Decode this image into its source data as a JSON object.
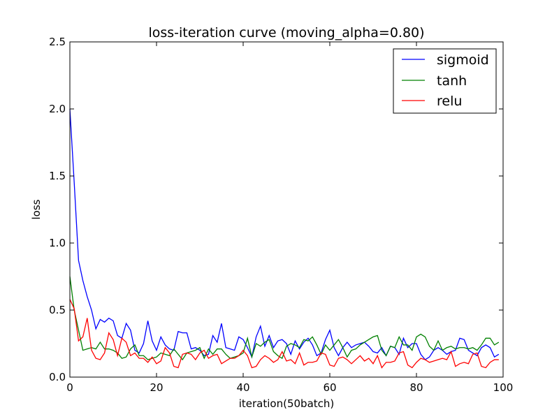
{
  "chart_data": {
    "type": "line",
    "title": "loss-iteration curve (moving_alpha=0.80)",
    "xlabel": "iteration(50batch)",
    "ylabel": "loss",
    "xlim": [
      0,
      100
    ],
    "ylim": [
      0,
      2.5
    ],
    "x_ticks": [
      0,
      20,
      40,
      60,
      80,
      100
    ],
    "x_tick_labels": [
      "0",
      "20",
      "40",
      "60",
      "80",
      "100"
    ],
    "y_ticks": [
      0,
      0.5,
      1.0,
      1.5,
      2.0,
      2.5
    ],
    "y_tick_labels": [
      "0.0",
      "0.5",
      "1.0",
      "1.5",
      "2.0",
      "2.5"
    ],
    "grid": false,
    "legend_position": "top-right",
    "series": [
      {
        "name": "sigmoid",
        "color": "#0000ff",
        "values": [
          2.0,
          1.45,
          0.87,
          0.72,
          0.6,
          0.5,
          0.36,
          0.43,
          0.41,
          0.44,
          0.42,
          0.31,
          0.29,
          0.4,
          0.35,
          0.2,
          0.18,
          0.25,
          0.42,
          0.27,
          0.2,
          0.3,
          0.24,
          0.21,
          0.2,
          0.34,
          0.33,
          0.33,
          0.21,
          0.22,
          0.2,
          0.16,
          0.17,
          0.31,
          0.26,
          0.4,
          0.22,
          0.21,
          0.2,
          0.3,
          0.28,
          0.22,
          0.15,
          0.3,
          0.38,
          0.23,
          0.31,
          0.22,
          0.27,
          0.28,
          0.25,
          0.17,
          0.27,
          0.21,
          0.26,
          0.29,
          0.24,
          0.16,
          0.18,
          0.28,
          0.35,
          0.22,
          0.16,
          0.22,
          0.26,
          0.22,
          0.24,
          0.25,
          0.26,
          0.23,
          0.19,
          0.18,
          0.22,
          0.16,
          0.23,
          0.22,
          0.17,
          0.29,
          0.22,
          0.25,
          0.25,
          0.17,
          0.13,
          0.15,
          0.2,
          0.22,
          0.2,
          0.17,
          0.19,
          0.2,
          0.29,
          0.28,
          0.2,
          0.18,
          0.16,
          0.22,
          0.24,
          0.22,
          0.15,
          0.17
        ]
      },
      {
        "name": "tanh",
        "color": "#008000",
        "values": [
          0.75,
          0.5,
          0.35,
          0.2,
          0.21,
          0.22,
          0.21,
          0.26,
          0.21,
          0.21,
          0.2,
          0.18,
          0.14,
          0.15,
          0.21,
          0.24,
          0.16,
          0.16,
          0.13,
          0.14,
          0.15,
          0.18,
          0.17,
          0.16,
          0.21,
          0.17,
          0.13,
          0.18,
          0.19,
          0.2,
          0.22,
          0.14,
          0.21,
          0.17,
          0.21,
          0.21,
          0.17,
          0.14,
          0.15,
          0.16,
          0.18,
          0.29,
          0.15,
          0.25,
          0.23,
          0.26,
          0.28,
          0.19,
          0.16,
          0.14,
          0.23,
          0.25,
          0.24,
          0.22,
          0.28,
          0.27,
          0.3,
          0.24,
          0.17,
          0.24,
          0.2,
          0.24,
          0.28,
          0.22,
          0.15,
          0.2,
          0.21,
          0.24,
          0.26,
          0.28,
          0.3,
          0.31,
          0.2,
          0.16,
          0.23,
          0.22,
          0.3,
          0.24,
          0.24,
          0.2,
          0.3,
          0.32,
          0.3,
          0.23,
          0.2,
          0.27,
          0.2,
          0.22,
          0.23,
          0.21,
          0.22,
          0.22,
          0.21,
          0.22,
          0.2,
          0.24,
          0.29,
          0.29,
          0.24,
          0.26
        ]
      },
      {
        "name": "relu",
        "color": "#ff0000",
        "values": [
          0.58,
          0.51,
          0.27,
          0.3,
          0.44,
          0.2,
          0.14,
          0.13,
          0.18,
          0.33,
          0.28,
          0.16,
          0.29,
          0.26,
          0.16,
          0.18,
          0.14,
          0.14,
          0.11,
          0.15,
          0.1,
          0.12,
          0.22,
          0.18,
          0.08,
          0.07,
          0.17,
          0.18,
          0.17,
          0.13,
          0.18,
          0.2,
          0.14,
          0.16,
          0.17,
          0.1,
          0.12,
          0.14,
          0.14,
          0.16,
          0.2,
          0.16,
          0.07,
          0.08,
          0.13,
          0.16,
          0.14,
          0.11,
          0.13,
          0.19,
          0.12,
          0.13,
          0.1,
          0.18,
          0.09,
          0.11,
          0.11,
          0.12,
          0.18,
          0.17,
          0.09,
          0.08,
          0.14,
          0.15,
          0.13,
          0.1,
          0.13,
          0.16,
          0.12,
          0.14,
          0.1,
          0.16,
          0.07,
          0.11,
          0.11,
          0.12,
          0.18,
          0.19,
          0.09,
          0.07,
          0.11,
          0.14,
          0.13,
          0.11,
          0.12,
          0.13,
          0.14,
          0.13,
          0.19,
          0.08,
          0.1,
          0.11,
          0.1,
          0.17,
          0.18,
          0.08,
          0.07,
          0.11,
          0.13,
          0.13
        ]
      }
    ]
  }
}
